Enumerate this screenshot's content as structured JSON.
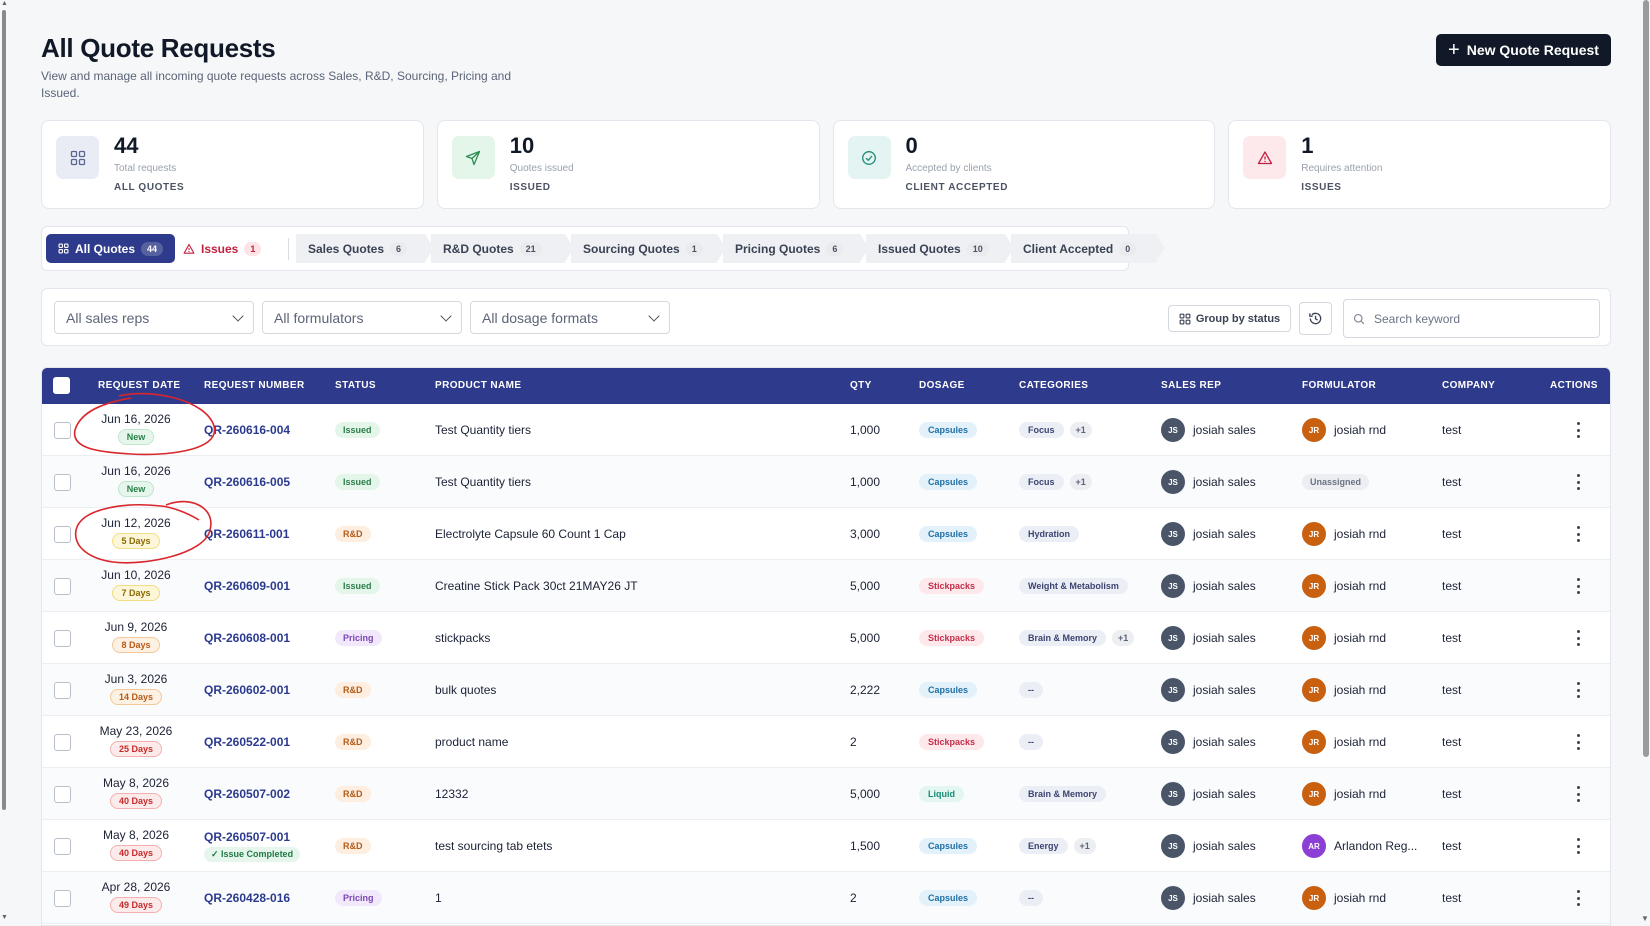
{
  "header": {
    "title": "All Quote Requests",
    "subtitle": "View and manage all incoming quote requests across Sales, R&D, Sourcing, Pricing and Issued.",
    "new_button": "New Quote Request"
  },
  "stats": [
    {
      "value": "44",
      "desc": "Total requests",
      "label": "ALL QUOTES",
      "icon": "grid-icon",
      "color": "#e9ecf5"
    },
    {
      "value": "10",
      "desc": "Quotes issued",
      "label": "ISSUED",
      "icon": "send-icon",
      "color": "#e4f5e9"
    },
    {
      "value": "0",
      "desc": "Accepted by clients",
      "label": "CLIENT ACCEPTED",
      "icon": "check-circle-icon",
      "color": "#e3f4f2"
    },
    {
      "value": "1",
      "desc": "Requires attention",
      "label": "ISSUES",
      "icon": "warning-icon",
      "color": "#fde8ec"
    }
  ],
  "tabs": [
    {
      "label": "All Quotes",
      "count": "44"
    },
    {
      "label": "Issues",
      "count": "1"
    },
    {
      "label": "Sales Quotes",
      "count": "6"
    },
    {
      "label": "R&D Quotes",
      "count": "21"
    },
    {
      "label": "Sourcing Quotes",
      "count": "1"
    },
    {
      "label": "Pricing Quotes",
      "count": "6"
    },
    {
      "label": "Issued Quotes",
      "count": "10"
    },
    {
      "label": "Client Accepted",
      "count": "0"
    }
  ],
  "filters": {
    "sales_reps": "All sales reps",
    "formulators": "All formulators",
    "dosage_formats": "All dosage formats",
    "group_by": "Group by status",
    "search_placeholder": "Search keyword"
  },
  "columns": [
    "REQUEST DATE",
    "REQUEST NUMBER",
    "STATUS",
    "PRODUCT NAME",
    "QTY",
    "DOSAGE",
    "CATEGORIES",
    "SALES REP",
    "FORMULATOR",
    "COMPANY",
    "ACTIONS"
  ],
  "rows": [
    {
      "date": "Jun 16, 2026",
      "age": "New",
      "req": "QR-260616-004",
      "status": "Issued",
      "product": "Test Quantity tiers",
      "qty": "1,000",
      "dosage": "Capsules",
      "cat": "Focus",
      "more": "+1",
      "rep_initials": "JS",
      "rep": "josiah sales",
      "form_initials": "JR",
      "form": "josiah rnd",
      "company": "test"
    },
    {
      "date": "Jun 16, 2026",
      "age": "New",
      "req": "QR-260616-005",
      "status": "Issued",
      "product": "Test Quantity tiers",
      "qty": "1,000",
      "dosage": "Capsules",
      "cat": "Focus",
      "more": "+1",
      "rep_initials": "JS",
      "rep": "josiah sales",
      "form_initials": "",
      "form": "Unassigned",
      "company": "test"
    },
    {
      "date": "Jun 12, 2026",
      "age": "5 Days",
      "req": "QR-260611-001",
      "status": "R&D",
      "product": "Electrolyte Capsule 60 Count 1 Cap",
      "qty": "3,000",
      "dosage": "Capsules",
      "cat": "Hydration",
      "more": "",
      "rep_initials": "JS",
      "rep": "josiah sales",
      "form_initials": "JR",
      "form": "josiah rnd",
      "company": "test"
    },
    {
      "date": "Jun 10, 2026",
      "age": "7 Days",
      "req": "QR-260609-001",
      "status": "Issued",
      "product": "Creatine Stick Pack 30ct 21MAY26 JT",
      "qty": "5,000",
      "dosage": "Stickpacks",
      "cat": "Weight & Metabolism",
      "more": "",
      "rep_initials": "JS",
      "rep": "josiah sales",
      "form_initials": "JR",
      "form": "josiah rnd",
      "company": "test"
    },
    {
      "date": "Jun 9, 2026",
      "age": "8 Days",
      "req": "QR-260608-001",
      "status": "Pricing",
      "product": "stickpacks",
      "qty": "5,000",
      "dosage": "Stickpacks",
      "cat": "Brain & Memory",
      "more": "+1",
      "rep_initials": "JS",
      "rep": "josiah sales",
      "form_initials": "JR",
      "form": "josiah rnd",
      "company": "test"
    },
    {
      "date": "Jun 3, 2026",
      "age": "14 Days",
      "req": "QR-260602-001",
      "status": "R&D",
      "product": "bulk quotes",
      "qty": "2,222",
      "dosage": "Capsules",
      "cat": "--",
      "more": "",
      "rep_initials": "JS",
      "rep": "josiah sales",
      "form_initials": "JR",
      "form": "josiah rnd",
      "company": "test"
    },
    {
      "date": "May 23, 2026",
      "age": "25 Days",
      "req": "QR-260522-001",
      "status": "R&D",
      "product": "product name",
      "qty": "2",
      "dosage": "Stickpacks",
      "cat": "--",
      "more": "",
      "rep_initials": "JS",
      "rep": "josiah sales",
      "form_initials": "JR",
      "form": "josiah rnd",
      "company": "test"
    },
    {
      "date": "May 8, 2026",
      "age": "40 Days",
      "req": "QR-260507-002",
      "status": "R&D",
      "product": "12332",
      "qty": "5,000",
      "dosage": "Liquid",
      "cat": "Brain & Memory",
      "more": "",
      "rep_initials": "JS",
      "rep": "josiah sales",
      "form_initials": "JR",
      "form": "josiah rnd",
      "company": "test"
    },
    {
      "date": "May 8, 2026",
      "age": "40 Days",
      "req": "QR-260507-001",
      "req_note": "Issue Completed",
      "status": "R&D",
      "product": "test sourcing tab etets",
      "qty": "1,500",
      "dosage": "Capsules",
      "cat": "Energy",
      "more": "+1",
      "rep_initials": "JS",
      "rep": "josiah sales",
      "form_initials": "AR",
      "form": "Arlandon Reg...",
      "company": "test"
    },
    {
      "date": "Apr 28, 2026",
      "age": "49 Days",
      "req": "QR-260428-016",
      "status": "Pricing",
      "product": "1",
      "qty": "2",
      "dosage": "Capsules",
      "cat": "--",
      "more": "",
      "rep_initials": "JS",
      "rep": "josiah sales",
      "form_initials": "JR",
      "form": "josiah rnd",
      "company": "test"
    }
  ]
}
